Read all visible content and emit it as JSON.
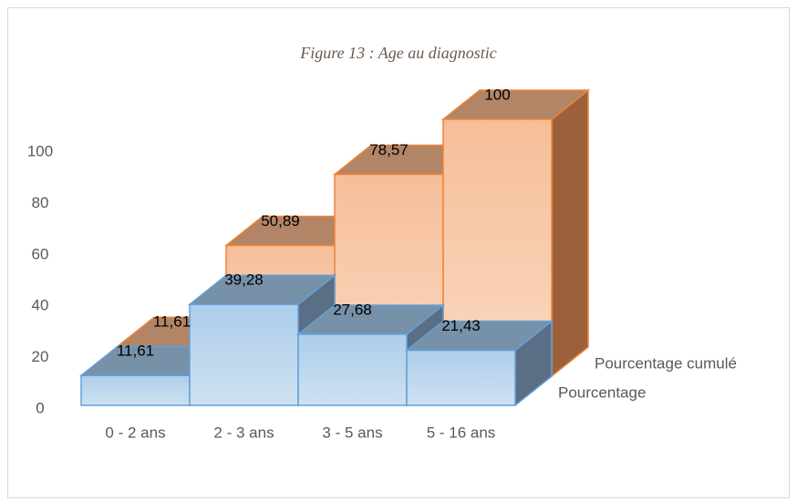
{
  "chart_data": {
    "type": "bar3d",
    "title": "Figure 13 : Age au diagnostic",
    "categories": [
      "0 - 2 ans",
      "2 - 3 ans",
      "3 - 5 ans",
      "5 - 16 ans"
    ],
    "series": [
      {
        "name": "Pourcentage",
        "color": "#5b9bd5",
        "values": [
          11.61,
          39.28,
          27.68,
          21.43
        ],
        "value_labels": [
          "11,61",
          "39,28",
          "27,68",
          "21,43"
        ]
      },
      {
        "name": "Pourcentage cumulé",
        "color": "#ed7d31",
        "values": [
          11.61,
          50.89,
          78.57,
          100
        ],
        "value_labels": [
          "11,61",
          "50,89",
          "78,57",
          "100"
        ]
      }
    ],
    "ylim": [
      0,
      100
    ],
    "yticks": [
      0,
      20,
      40,
      60,
      80,
      100
    ]
  }
}
